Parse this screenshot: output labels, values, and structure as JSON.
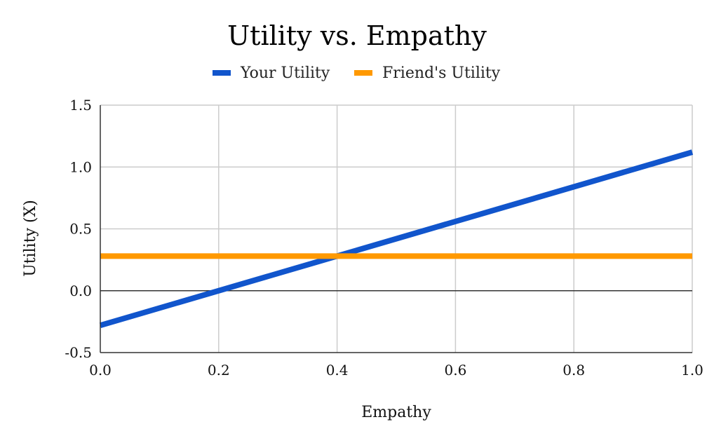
{
  "chart_data": {
    "type": "line",
    "title": "Utility vs. Empathy",
    "xlabel": "Empathy",
    "ylabel": "Utility (X)",
    "xlim": [
      0,
      1
    ],
    "ylim": [
      -0.5,
      1.5
    ],
    "x_ticks": [
      0,
      0.2,
      0.4,
      0.6,
      0.8,
      1.0
    ],
    "x_tick_labels": [
      "0.0",
      "0.2",
      "0.4",
      "0.6",
      "0.8",
      "1.0"
    ],
    "y_ticks": [
      -0.5,
      0,
      0.5,
      1.0,
      1.5
    ],
    "y_tick_labels": [
      "-0.5",
      "0.0",
      "0.5",
      "1.0",
      "1.5"
    ],
    "grid": true,
    "legend_position": "top",
    "series": [
      {
        "name": "Your Utility",
        "color": "#1155cc",
        "x": [
          0,
          1
        ],
        "y": [
          -0.28,
          1.12
        ]
      },
      {
        "name": "Friend's Utility",
        "color": "#ff9900",
        "x": [
          0,
          1
        ],
        "y": [
          0.28,
          0.28
        ]
      }
    ]
  }
}
